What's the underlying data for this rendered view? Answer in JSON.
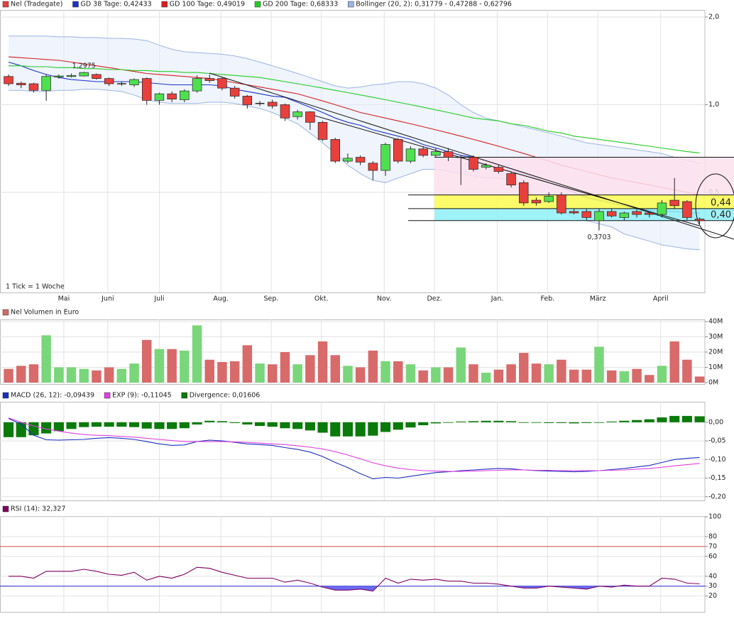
{
  "chart_data": [
    {
      "type": "candlestick",
      "title": "Nel (Tradegate)",
      "note": "1 Tick = 1 Woche",
      "color_up": "#4fe04f",
      "color_down": "#e8403c",
      "color": "#e8403c",
      "categories": [
        null,
        null,
        null,
        null,
        null,
        null,
        null,
        null,
        null,
        null,
        null,
        null,
        null,
        null,
        null,
        null,
        null,
        null,
        null,
        null,
        null,
        null,
        null,
        null,
        null,
        null,
        null,
        null,
        null,
        null,
        null,
        null,
        null,
        null,
        null,
        null,
        null,
        null,
        null,
        null,
        null,
        null,
        null,
        null,
        null,
        null,
        null,
        null,
        null,
        null,
        null,
        null,
        null,
        null,
        null,
        null
      ],
      "open": [
        1.25,
        1.185,
        1.18,
        1.12,
        1.25,
        1.255,
        1.255,
        1.27,
        1.23,
        1.18,
        1.17,
        1.23,
        1.035,
        1.09,
        1.04,
        1.115,
        1.23,
        1.23,
        1.14,
        1.07,
        1.01,
        1.02,
        1.0,
        0.91,
        0.945,
        0.87,
        0.76,
        0.64,
        0.66,
        0.63,
        0.595,
        0.76,
        0.64,
        0.705,
        0.67,
        0.69,
        0.66,
        0.66,
        0.61,
        0.61,
        0.58,
        0.54,
        0.47,
        0.465,
        0.49,
        0.43,
        0.43,
        0.4,
        0.43,
        0.41,
        0.43,
        0.425,
        0.42,
        0.47,
        0.465,
        0.405
      ],
      "close": [
        1.18,
        1.17,
        1.12,
        1.25,
        1.255,
        1.26,
        1.29,
        1.23,
        1.18,
        1.18,
        1.22,
        1.035,
        1.09,
        1.045,
        1.115,
        1.23,
        1.21,
        1.14,
        1.07,
        1.0,
        1.01,
        0.99,
        0.9,
        0.945,
        0.87,
        0.76,
        0.64,
        0.655,
        0.635,
        0.595,
        0.73,
        0.64,
        0.705,
        0.67,
        0.69,
        0.66,
        0.66,
        0.6,
        0.62,
        0.59,
        0.53,
        0.46,
        0.46,
        0.485,
        0.425,
        0.425,
        0.41,
        0.43,
        0.415,
        0.425,
        0.42,
        0.42,
        0.46,
        0.45,
        0.41,
        0.4
      ],
      "high": [
        1.27,
        1.2,
        1.19,
        1.27,
        1.27,
        1.28,
        1.2975,
        1.28,
        1.24,
        1.2,
        1.23,
        1.24,
        1.1,
        1.11,
        1.13,
        1.26,
        1.27,
        1.24,
        1.16,
        1.08,
        1.03,
        1.04,
        1.01,
        0.96,
        0.95,
        0.88,
        0.77,
        0.68,
        0.67,
        0.64,
        0.74,
        0.77,
        0.72,
        0.72,
        0.71,
        0.71,
        0.67,
        0.67,
        0.63,
        0.62,
        0.59,
        0.55,
        0.48,
        0.5,
        0.5,
        0.44,
        0.44,
        0.44,
        0.44,
        0.43,
        0.44,
        0.43,
        0.47,
        0.56,
        0.47,
        0.41
      ],
      "low": [
        1.16,
        1.14,
        1.1,
        1.03,
        1.23,
        1.24,
        1.25,
        1.22,
        1.16,
        1.16,
        1.15,
        1.0,
        1.0,
        1.02,
        1.02,
        1.1,
        1.19,
        1.12,
        1.05,
        0.97,
        0.99,
        0.97,
        0.88,
        0.89,
        0.82,
        0.75,
        0.63,
        0.63,
        0.62,
        0.55,
        0.57,
        0.63,
        0.63,
        0.66,
        0.66,
        0.64,
        0.53,
        0.59,
        0.6,
        0.58,
        0.52,
        0.45,
        0.45,
        0.46,
        0.42,
        0.42,
        0.4,
        0.3703,
        0.41,
        0.4,
        0.41,
        0.41,
        0.41,
        0.44,
        0.4,
        0.39
      ],
      "annotations": [
        {
          "label": "1,2975",
          "index": 6,
          "at": "high"
        },
        {
          "label": "0,3703",
          "index": 47,
          "at": "low"
        }
      ],
      "series": [
        {
          "name": "GD 38 Tage: 0,42433",
          "color": "#1c33c8",
          "values": [
            1.4,
            1.36,
            1.31,
            1.27,
            1.24,
            1.22,
            1.21,
            1.2,
            1.2,
            1.2,
            1.2,
            1.19,
            1.18,
            1.17,
            1.17,
            1.17,
            1.17,
            1.16,
            1.13,
            1.11,
            1.09,
            1.07,
            1.06,
            1.02,
            0.98,
            0.94,
            0.9,
            0.87,
            0.85,
            0.82,
            0.8,
            0.78,
            0.76,
            0.73,
            0.71,
            0.69,
            0.67,
            0.66,
            0.64,
            0.62,
            0.6,
            0.58,
            0.56,
            0.54,
            0.52,
            0.5,
            0.48,
            0.47,
            0.46,
            0.45,
            0.44,
            0.435,
            0.43,
            0.43,
            0.425,
            0.42433
          ]
        },
        {
          "name": "GD 100 Tage: 0,49019",
          "color": "#d42020",
          "values": [
            1.46,
            1.45,
            1.44,
            1.43,
            1.42,
            1.4,
            1.38,
            1.36,
            1.34,
            1.32,
            1.3,
            1.28,
            1.27,
            1.26,
            1.25,
            1.24,
            1.23,
            1.21,
            1.19,
            1.17,
            1.15,
            1.13,
            1.11,
            1.09,
            1.06,
            1.03,
            1.0,
            0.97,
            0.94,
            0.92,
            0.9,
            0.88,
            0.86,
            0.84,
            0.82,
            0.8,
            0.78,
            0.76,
            0.74,
            0.72,
            0.7,
            0.68,
            0.66,
            0.64,
            0.62,
            0.605,
            0.59,
            0.575,
            0.56,
            0.55,
            0.54,
            0.53,
            0.52,
            0.51,
            0.5,
            0.49019
          ]
        },
        {
          "name": "GD 200 Tage: 0,68333",
          "color": "#22cc22",
          "values": [
            1.36,
            1.36,
            1.35,
            1.35,
            1.34,
            1.34,
            1.33,
            1.33,
            1.32,
            1.32,
            1.31,
            1.31,
            1.3,
            1.3,
            1.29,
            1.29,
            1.28,
            1.27,
            1.26,
            1.25,
            1.24,
            1.22,
            1.2,
            1.18,
            1.16,
            1.14,
            1.12,
            1.1,
            1.08,
            1.06,
            1.04,
            1.02,
            1.0,
            0.98,
            0.96,
            0.94,
            0.92,
            0.9,
            0.89,
            0.88,
            0.86,
            0.85,
            0.83,
            0.81,
            0.8,
            0.78,
            0.77,
            0.76,
            0.75,
            0.74,
            0.73,
            0.72,
            0.71,
            0.7,
            0.69,
            0.68333
          ]
        }
      ],
      "band": {
        "name": "Bollinger (20, 2): 0,31779 - 0,47288 - 0,62796",
        "color": "#9db4e0",
        "fill": "#e4ecfb",
        "upper": [
          1.72,
          1.72,
          1.72,
          1.72,
          1.71,
          1.71,
          1.7,
          1.7,
          1.69,
          1.69,
          1.68,
          1.66,
          1.6,
          1.55,
          1.52,
          1.51,
          1.5,
          1.49,
          1.47,
          1.44,
          1.4,
          1.36,
          1.32,
          1.28,
          1.24,
          1.2,
          1.16,
          1.14,
          1.15,
          1.17,
          1.18,
          1.2,
          1.2,
          1.18,
          1.14,
          1.08,
          1.0,
          0.94,
          0.9,
          0.88,
          0.86,
          0.84,
          0.82,
          0.8,
          0.78,
          0.76,
          0.74,
          0.73,
          0.72,
          0.71,
          0.7,
          0.69,
          0.68,
          0.66,
          0.645,
          0.62796
        ],
        "lower": [
          1.12,
          1.12,
          1.11,
          1.11,
          1.12,
          1.12,
          1.13,
          1.13,
          1.12,
          1.11,
          1.08,
          1.04,
          1.02,
          1.01,
          1.01,
          1.01,
          1.02,
          1.02,
          1.01,
          0.99,
          0.97,
          0.94,
          0.9,
          0.86,
          0.8,
          0.74,
          0.68,
          0.62,
          0.58,
          0.55,
          0.54,
          0.56,
          0.58,
          0.6,
          0.6,
          0.59,
          0.58,
          0.57,
          0.56,
          0.56,
          0.55,
          0.52,
          0.48,
          0.45,
          0.43,
          0.41,
          0.4,
          0.39,
          0.38,
          0.36,
          0.35,
          0.34,
          0.33,
          0.325,
          0.32,
          0.31779
        ]
      },
      "levels": [
        {
          "value": 0.66
        },
        {
          "value": 0.49
        },
        {
          "value": 0.44,
          "label": "0,44"
        },
        {
          "value": 0.4,
          "label": "0,40"
        }
      ],
      "zone_colors": [
        "#fde0ec",
        "#fbfb50",
        "#8ff0f8"
      ],
      "log_scale": true,
      "grid": true,
      "ylim": [
        0.2267,
        2.115
      ],
      "yticks": [
        {
          "value": 2,
          "label": "2,0"
        },
        {
          "value": 1,
          "label": "1,0"
        },
        {
          "value": 0.5,
          "label": "0,5"
        }
      ],
      "xlim": [
        -0.68,
        55.42
      ],
      "xticks": [
        {
          "value": 4.4,
          "label": "Mai"
        },
        {
          "value": 7.9,
          "label": "Juni"
        },
        {
          "value": 12.0,
          "label": "Juli"
        },
        {
          "value": 16.9,
          "label": "Aug."
        },
        {
          "value": 20.9,
          "label": "Sep."
        },
        {
          "value": 24.9,
          "label": "Okt."
        },
        {
          "value": 29.9,
          "label": "Nov."
        },
        {
          "value": 33.9,
          "label": "Dez."
        },
        {
          "value": 38.9,
          "label": "Jan."
        },
        {
          "value": 42.9,
          "label": "Feb."
        },
        {
          "value": 46.9,
          "label": "März"
        },
        {
          "value": 51.9,
          "label": "April"
        }
      ]
    },
    {
      "type": "bar",
      "title": "Nel Volumen in Euro",
      "color": "#d86a6a",
      "color_up": "#7ad67a",
      "color_down": "#d86a6a",
      "values": [
        9,
        11,
        12,
        31,
        10,
        10,
        9,
        8,
        10,
        9,
        12.5,
        28,
        22,
        22,
        21,
        37.5,
        15,
        13.5,
        14,
        24.5,
        12.5,
        12,
        20,
        12,
        18,
        27,
        18,
        11,
        10,
        21,
        14,
        14,
        12,
        8,
        10,
        10,
        23,
        12,
        6.5,
        8.5,
        12,
        19.5,
        12.5,
        12,
        15,
        8.5,
        8.5,
        23.5,
        8,
        7.5,
        9,
        5,
        11,
        27,
        15,
        4
      ],
      "ylim": [
        0,
        41.4
      ],
      "yticks": [
        {
          "value": 40,
          "label": "40M"
        },
        {
          "value": 30,
          "label": "30M"
        },
        {
          "value": 20,
          "label": "20M"
        },
        {
          "value": 10,
          "label": "10M"
        },
        {
          "value": 0,
          "label": "0M"
        }
      ]
    },
    {
      "type": "combo",
      "series": [
        {
          "name": "MACD (26, 12): -0,09439",
          "color": "#1c2fc0",
          "kind": "line",
          "values": [
            0.01,
            -0.005,
            -0.035,
            -0.047,
            -0.048,
            -0.047,
            -0.046,
            -0.043,
            -0.041,
            -0.043,
            -0.046,
            -0.052,
            -0.058,
            -0.062,
            -0.061,
            -0.052,
            -0.048,
            -0.05,
            -0.054,
            -0.058,
            -0.06,
            -0.062,
            -0.068,
            -0.073,
            -0.08,
            -0.092,
            -0.108,
            -0.122,
            -0.138,
            -0.152,
            -0.148,
            -0.15,
            -0.145,
            -0.14,
            -0.135,
            -0.133,
            -0.13,
            -0.128,
            -0.126,
            -0.124,
            -0.125,
            -0.128,
            -0.13,
            -0.131,
            -0.132,
            -0.133,
            -0.132,
            -0.13,
            -0.127,
            -0.124,
            -0.12,
            -0.116,
            -0.108,
            -0.1,
            -0.097,
            -0.09439
          ]
        },
        {
          "name": "EXP (9): -0,11045",
          "color": "#e040e0",
          "kind": "line",
          "values": [
            0.012,
            0.0,
            -0.01,
            -0.018,
            -0.024,
            -0.029,
            -0.033,
            -0.035,
            -0.036,
            -0.038,
            -0.04,
            -0.043,
            -0.046,
            -0.049,
            -0.052,
            -0.052,
            -0.052,
            -0.052,
            -0.053,
            -0.054,
            -0.056,
            -0.058,
            -0.06,
            -0.063,
            -0.067,
            -0.072,
            -0.079,
            -0.088,
            -0.098,
            -0.109,
            -0.117,
            -0.123,
            -0.127,
            -0.13,
            -0.131,
            -0.132,
            -0.132,
            -0.131,
            -0.13,
            -0.129,
            -0.128,
            -0.128,
            -0.129,
            -0.129,
            -0.13,
            -0.13,
            -0.13,
            -0.13,
            -0.129,
            -0.128,
            -0.126,
            -0.124,
            -0.121,
            -0.117,
            -0.114,
            -0.11045
          ]
        },
        {
          "name": "Divergence: 0,01606",
          "color": "#0a7a0a",
          "kind": "bar",
          "values": [
            -0.04,
            -0.04,
            -0.035,
            -0.03,
            -0.024,
            -0.018,
            -0.013,
            -0.012,
            -0.012,
            -0.012,
            -0.013,
            -0.017,
            -0.018,
            -0.018,
            -0.016,
            -0.006,
            0.004,
            0.003,
            -0.002,
            -0.006,
            -0.01,
            -0.012,
            -0.016,
            -0.018,
            -0.022,
            -0.028,
            -0.038,
            -0.038,
            -0.038,
            -0.036,
            -0.026,
            -0.02,
            -0.014,
            -0.008,
            -0.003,
            -0.001,
            0.002,
            0.003,
            0.004,
            0.004,
            0.003,
            0.0,
            -0.001,
            -0.002,
            -0.002,
            -0.003,
            -0.002,
            0.0,
            0.002,
            0.004,
            0.006,
            0.008,
            0.013,
            0.017,
            0.017,
            0.01606
          ]
        }
      ],
      "ylim": [
        -0.21,
        0.055
      ],
      "yticks": [
        {
          "value": 0,
          "label": "0,00"
        },
        {
          "value": -0.05,
          "label": "-0,05"
        },
        {
          "value": -0.1,
          "label": "-0,10"
        },
        {
          "value": -0.15,
          "label": "-0,15"
        },
        {
          "value": -0.2,
          "label": "-0,20"
        }
      ]
    },
    {
      "type": "line",
      "series": [
        {
          "name": "RSI (14): 32,327",
          "color": "#800060",
          "values": [
            40,
            40,
            38,
            45,
            45,
            45,
            47,
            45,
            42,
            41,
            44,
            36,
            40,
            38,
            42,
            49,
            48,
            44,
            41,
            38,
            38,
            38,
            34,
            36,
            33,
            29,
            26,
            26,
            27,
            25,
            38,
            33,
            37,
            36,
            37,
            35,
            35,
            33,
            33,
            32,
            30,
            28,
            28,
            30,
            29,
            28,
            27,
            30,
            29,
            31,
            30,
            30,
            38,
            37,
            33,
            32.327
          ]
        }
      ],
      "overbought": {
        "value": 70,
        "color": "#d05050"
      },
      "oversold": {
        "value": 30,
        "color": "#2020d0",
        "fill": "#6a6af0"
      },
      "ylim": [
        4,
        100
      ],
      "yticks": [
        100,
        80,
        70,
        60,
        40,
        30,
        20
      ]
    }
  ]
}
